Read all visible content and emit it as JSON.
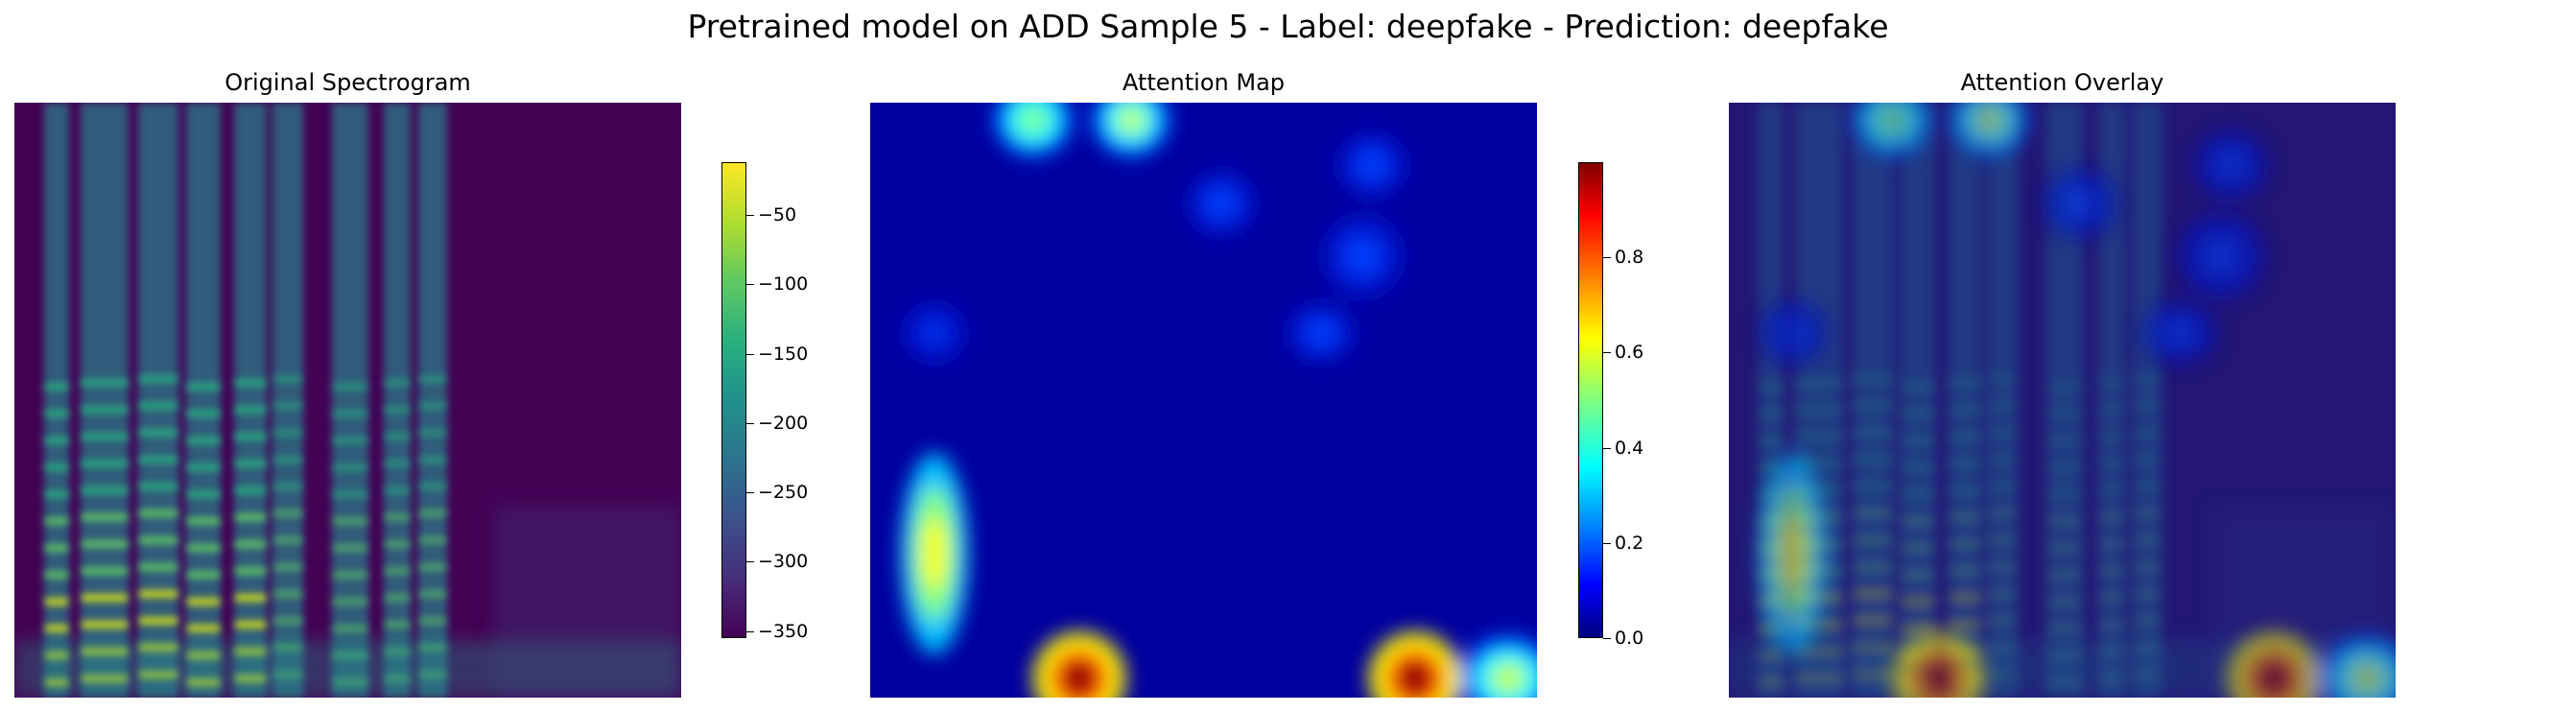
{
  "suptitle": "Pretrained model on ADD Sample 5 - Label: deepfake - Prediction: deepfake",
  "chart_data": [
    {
      "type": "heatmap",
      "title": "Original Spectrogram",
      "colormap": "viridis",
      "axes": "off",
      "colorbar": {
        "ticks": [
          -50,
          -100,
          -150,
          -200,
          -250,
          -300,
          -350
        ],
        "ticklabels": [
          "−50",
          "−100",
          "−150",
          "−200",
          "−250",
          "−300",
          "−350"
        ],
        "vmin": -355,
        "vmax": -12
      }
    },
    {
      "type": "heatmap",
      "title": "Attention Map",
      "colormap": "jet",
      "axes": "off",
      "colorbar": {
        "ticks": [
          0.0,
          0.2,
          0.4,
          0.6,
          0.8
        ],
        "ticklabels": [
          "0.0",
          "0.2",
          "0.4",
          "0.6",
          "0.8"
        ],
        "vmin": 0.0,
        "vmax": 1.0
      }
    },
    {
      "type": "heatmap",
      "title": "Attention Overlay",
      "colormap": "viridis + jet overlay",
      "axes": "off"
    }
  ],
  "colors": {
    "viridis_low": "#440154",
    "viridis_mid": "#21918c",
    "viridis_high": "#fde725",
    "jet_low": "#00007f",
    "jet_high": "#7f0000"
  }
}
